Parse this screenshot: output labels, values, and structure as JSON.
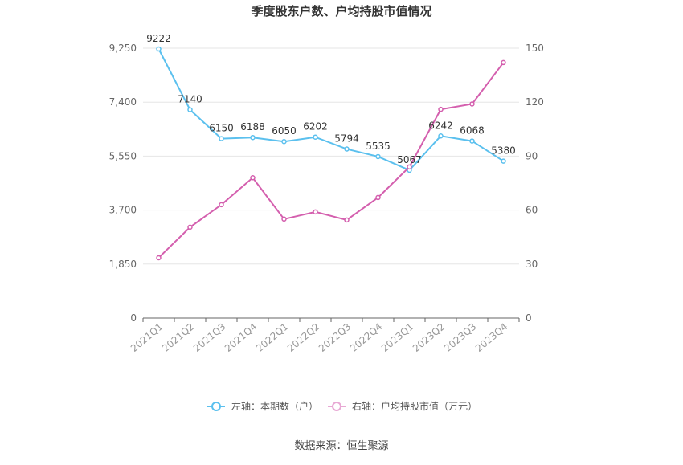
{
  "chart_data": {
    "type": "line",
    "title": "季度股东户数、户均持股市值情况",
    "categories": [
      "2021Q1",
      "2021Q2",
      "2021Q3",
      "2021Q4",
      "2022Q1",
      "2022Q2",
      "2022Q3",
      "2022Q4",
      "2023Q1",
      "2023Q2",
      "2023Q3",
      "2023Q4"
    ],
    "y_left": {
      "min": 0,
      "max": 9250,
      "ticks": [
        0,
        1850,
        3700,
        5550,
        7400,
        9250
      ],
      "tick_labels": [
        "0",
        "1,850",
        "3,700",
        "5,550",
        "7,400",
        "9,250"
      ]
    },
    "y_right": {
      "min": 0,
      "max": 150,
      "ticks": [
        0,
        30,
        60,
        90,
        120,
        150
      ],
      "tick_labels": [
        "0",
        "30",
        "60",
        "90",
        "120",
        "150"
      ]
    },
    "series": [
      {
        "name": "左轴：本期数（户）",
        "axis": "left",
        "color": "#5bc0ee",
        "values": [
          9222,
          7140,
          6150,
          6188,
          6050,
          6202,
          5794,
          5535,
          5067,
          6242,
          6068,
          5380
        ],
        "labels": [
          "9222",
          "7140",
          "6150",
          "6188",
          "6050",
          "6202",
          "5794",
          "5535",
          "5067",
          "6242",
          "6068",
          "5380"
        ]
      },
      {
        "name": "右轴：户均持股市值（万元）",
        "axis": "right",
        "color": "#d45fae",
        "values": [
          33.5,
          50.5,
          63,
          78,
          55,
          59,
          54.5,
          67,
          84,
          116,
          119,
          142
        ]
      }
    ],
    "grid": true,
    "legend_position": "bottom"
  },
  "source": "数据来源：恒生聚源"
}
